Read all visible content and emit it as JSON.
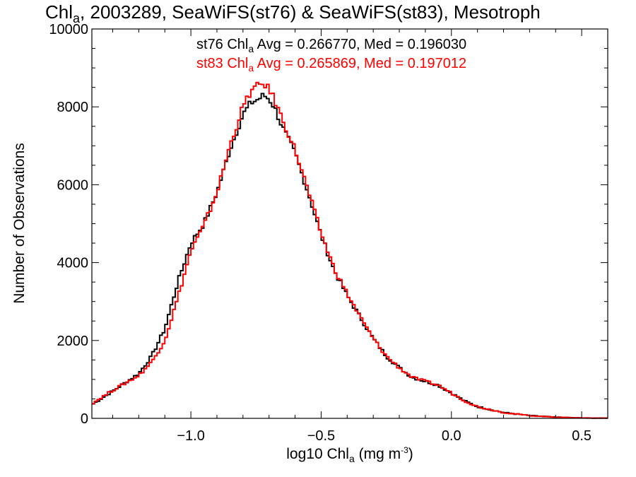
{
  "chart_data": {
    "type": "histogram-step",
    "title": {
      "prefix": "Chl",
      "sub": "a",
      "rest": ", 2003289, SeaWiFS(st76) & SeaWiFS(st83), Mesotroph"
    },
    "xlabel": {
      "prefix": "log10 Chl",
      "sub": "a",
      "mid": " (mg m",
      "sup": "-3",
      "suffix": ")"
    },
    "ylabel": "Number of Observations",
    "xlim": [
      -1.38,
      0.6
    ],
    "ylim": [
      0,
      10000
    ],
    "xticks": [
      {
        "value": -1.0,
        "label": "−1.0"
      },
      {
        "value": -0.5,
        "label": "−0.5"
      },
      {
        "value": 0.0,
        "label": "0.0"
      },
      {
        "value": 0.5,
        "label": "0.5"
      }
    ],
    "yticks": [
      {
        "value": 0,
        "label": "0"
      },
      {
        "value": 2000,
        "label": "2000"
      },
      {
        "value": 4000,
        "label": "4000"
      },
      {
        "value": 6000,
        "label": "6000"
      },
      {
        "value": 8000,
        "label": "8000"
      },
      {
        "value": 10000,
        "label": "10000"
      }
    ],
    "annotations": [
      {
        "series": "st76",
        "color": "#000000",
        "pre": "st76 Chl",
        "sub": "a",
        "post": " Avg = 0.266770, Med = 0.196030"
      },
      {
        "series": "st83",
        "color": "#ff0000",
        "pre": "st83 Chl",
        "sub": "a",
        "post": " Avg = 0.265869, Med = 0.197012"
      }
    ],
    "bin_width": 0.01,
    "series": [
      {
        "name": "st76",
        "color": "#000000",
        "x": [
          -1.38,
          -1.3,
          -1.2,
          -1.15,
          -1.1,
          -1.05,
          -1.0,
          -0.95,
          -0.9,
          -0.85,
          -0.8,
          -0.77,
          -0.74,
          -0.72,
          -0.7,
          -0.68,
          -0.65,
          -0.6,
          -0.55,
          -0.5,
          -0.45,
          -0.4,
          -0.35,
          -0.3,
          -0.25,
          -0.2,
          -0.15,
          -0.1,
          -0.05,
          0.0,
          0.05,
          0.1,
          0.2,
          0.3,
          0.4,
          0.5,
          0.6
        ],
        "y": [
          350,
          700,
          1150,
          1600,
          2300,
          3500,
          4500,
          5000,
          5800,
          6900,
          7800,
          8100,
          8200,
          8300,
          8200,
          8000,
          7500,
          6800,
          5800,
          4700,
          3800,
          3150,
          2600,
          2050,
          1600,
          1300,
          1050,
          950,
          850,
          650,
          450,
          300,
          150,
          70,
          30,
          10,
          5
        ]
      },
      {
        "name": "st83",
        "color": "#ff0000",
        "x": [
          -1.38,
          -1.3,
          -1.2,
          -1.15,
          -1.1,
          -1.05,
          -1.0,
          -0.95,
          -0.9,
          -0.85,
          -0.8,
          -0.77,
          -0.74,
          -0.72,
          -0.7,
          -0.68,
          -0.65,
          -0.6,
          -0.55,
          -0.5,
          -0.45,
          -0.4,
          -0.35,
          -0.3,
          -0.25,
          -0.2,
          -0.15,
          -0.1,
          -0.05,
          0.0,
          0.05,
          0.1,
          0.2,
          0.3,
          0.4,
          0.5,
          0.6
        ],
        "y": [
          380,
          720,
          1100,
          1450,
          2000,
          3100,
          4300,
          4950,
          5800,
          7000,
          8000,
          8400,
          8550,
          8600,
          8450,
          8200,
          7700,
          6900,
          5850,
          4750,
          3850,
          3200,
          2600,
          2050,
          1600,
          1300,
          1050,
          950,
          850,
          650,
          450,
          300,
          150,
          70,
          30,
          10,
          5
        ]
      }
    ]
  }
}
